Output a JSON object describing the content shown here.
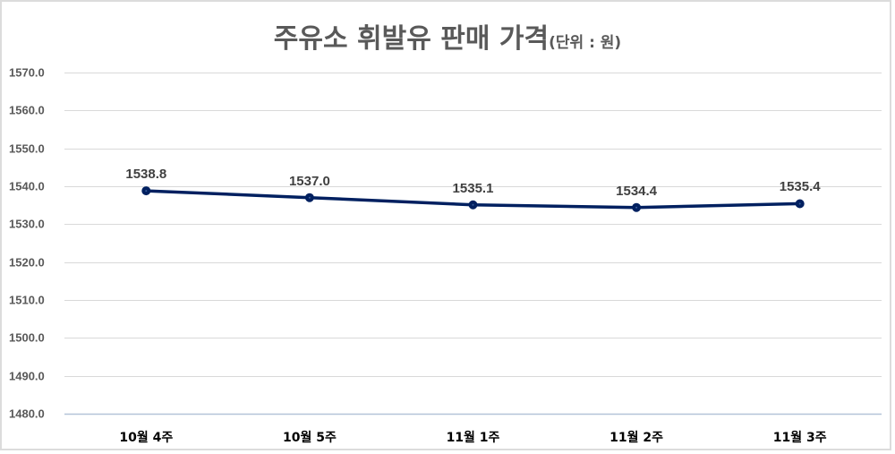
{
  "chart_data": {
    "type": "line",
    "title": "주유소 휘발유 판매 가격",
    "title_unit": "(단위 : 원)",
    "xlabel": "",
    "ylabel": "",
    "categories": [
      "10월 4주",
      "10월 5주",
      "11월 1주",
      "11월 2주",
      "11월 3주"
    ],
    "series": [
      {
        "name": "휘발유 판매 가격",
        "values": [
          1538.8,
          1537.0,
          1535.1,
          1534.4,
          1535.4
        ],
        "labels": [
          "1538.8",
          "1537.0",
          "1535.1",
          "1534.4",
          "1535.4"
        ],
        "color": "#002060"
      }
    ],
    "ylim": [
      1480,
      1570
    ],
    "yticks": [
      "1570.0",
      "1560.0",
      "1550.0",
      "1540.0",
      "1530.0",
      "1520.0",
      "1510.0",
      "1500.0",
      "1490.0",
      "1480.0"
    ],
    "ytick_values": [
      1570,
      1560,
      1550,
      1540,
      1530,
      1520,
      1510,
      1500,
      1490,
      1480
    ],
    "grid": true,
    "legend": "none",
    "data_labels": true
  },
  "colors": {
    "line": "#002060",
    "grid": "#d9d9d9",
    "axis": "#b4c4d8",
    "title": "#595959",
    "tick": "#595959",
    "label": "#404040"
  }
}
